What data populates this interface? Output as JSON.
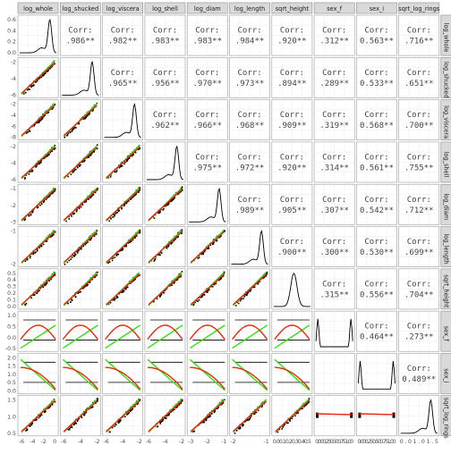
{
  "chart_data": {
    "type": "scatter-matrix",
    "title": "",
    "variables": [
      "log_whole",
      "log_shucked",
      "log_viscera",
      "log_shell",
      "log_diam",
      "log_length",
      "sqrt_height",
      "sex_f",
      "sex_i",
      "sqrt_log_rings"
    ],
    "strip_labels": [
      "log_whole",
      "log_shucked",
      "log_viscera",
      "log_shell",
      "log_diam",
      "log_length",
      "sqrt_height",
      "sex_f",
      "sex_i",
      "sqrt_log_rings"
    ],
    "correlations": [
      {
        "row": 0,
        "col": 1,
        "label": "Corr:",
        "value": ".986**"
      },
      {
        "row": 0,
        "col": 2,
        "label": "Corr:",
        "value": ".982**"
      },
      {
        "row": 0,
        "col": 3,
        "label": "Corr:",
        "value": ".983**"
      },
      {
        "row": 0,
        "col": 4,
        "label": "Corr:",
        "value": ".983**"
      },
      {
        "row": 0,
        "col": 5,
        "label": "Corr:",
        "value": ".984**"
      },
      {
        "row": 0,
        "col": 6,
        "label": "Corr:",
        "value": ".920**"
      },
      {
        "row": 0,
        "col": 7,
        "label": "Corr:",
        "value": ".312**"
      },
      {
        "row": 0,
        "col": 8,
        "label": "Corr:",
        "value": "0.563**"
      },
      {
        "row": 0,
        "col": 9,
        "label": "Corr:",
        "value": ".716**"
      },
      {
        "row": 1,
        "col": 2,
        "label": "Corr:",
        "value": ".965**"
      },
      {
        "row": 1,
        "col": 3,
        "label": "Corr:",
        "value": ".956**"
      },
      {
        "row": 1,
        "col": 4,
        "label": "Corr:",
        "value": ".970**"
      },
      {
        "row": 1,
        "col": 5,
        "label": "Corr:",
        "value": ".973**"
      },
      {
        "row": 1,
        "col": 6,
        "label": "Corr:",
        "value": ".894**"
      },
      {
        "row": 1,
        "col": 7,
        "label": "Corr:",
        "value": ".289**"
      },
      {
        "row": 1,
        "col": 8,
        "label": "Corr:",
        "value": "0.533**"
      },
      {
        "row": 1,
        "col": 9,
        "label": "Corr:",
        "value": ".651**"
      },
      {
        "row": 2,
        "col": 3,
        "label": "Corr:",
        "value": ".962**"
      },
      {
        "row": 2,
        "col": 4,
        "label": "Corr:",
        "value": ".966**"
      },
      {
        "row": 2,
        "col": 5,
        "label": "Corr:",
        "value": ".968**"
      },
      {
        "row": 2,
        "col": 6,
        "label": "Corr:",
        "value": ".909**"
      },
      {
        "row": 2,
        "col": 7,
        "label": "Corr:",
        "value": ".319**"
      },
      {
        "row": 2,
        "col": 8,
        "label": "Corr:",
        "value": "0.568**"
      },
      {
        "row": 2,
        "col": 9,
        "label": "Corr:",
        "value": ".700**"
      },
      {
        "row": 3,
        "col": 4,
        "label": "Corr:",
        "value": ".975**"
      },
      {
        "row": 3,
        "col": 5,
        "label": "Corr:",
        "value": ".972**"
      },
      {
        "row": 3,
        "col": 6,
        "label": "Corr:",
        "value": ".920**"
      },
      {
        "row": 3,
        "col": 7,
        "label": "Corr:",
        "value": ".314**"
      },
      {
        "row": 3,
        "col": 8,
        "label": "Corr:",
        "value": "0.561**"
      },
      {
        "row": 3,
        "col": 9,
        "label": "Corr:",
        "value": ".755**"
      },
      {
        "row": 4,
        "col": 5,
        "label": "Corr:",
        "value": ".989**"
      },
      {
        "row": 4,
        "col": 6,
        "label": "Corr:",
        "value": ".905**"
      },
      {
        "row": 4,
        "col": 7,
        "label": "Corr:",
        "value": ".307**"
      },
      {
        "row": 4,
        "col": 8,
        "label": "Corr:",
        "value": "0.542**"
      },
      {
        "row": 4,
        "col": 9,
        "label": "Corr:",
        "value": ".712**"
      },
      {
        "row": 5,
        "col": 6,
        "label": "Corr:",
        "value": ".900**"
      },
      {
        "row": 5,
        "col": 7,
        "label": "Corr:",
        "value": ".300**"
      },
      {
        "row": 5,
        "col": 8,
        "label": "Corr:",
        "value": "0.530**"
      },
      {
        "row": 5,
        "col": 9,
        "label": "Corr:",
        "value": ".699**"
      },
      {
        "row": 6,
        "col": 7,
        "label": "Corr:",
        "value": ".315**"
      },
      {
        "row": 6,
        "col": 8,
        "label": "Corr:",
        "value": "0.556**"
      },
      {
        "row": 6,
        "col": 9,
        "label": "Corr:",
        "value": ".704**"
      },
      {
        "row": 7,
        "col": 8,
        "label": "Corr:",
        "value": "0.464**"
      },
      {
        "row": 7,
        "col": 9,
        "label": "Corr:",
        "value": ".273**"
      },
      {
        "row": 8,
        "col": 9,
        "label": "Corr:",
        "value": "0.489**"
      }
    ],
    "y_ticks": [
      [
        "0.6",
        "0.4",
        "0.2",
        "0.0"
      ],
      [
        "-2",
        "-4",
        "-6"
      ],
      [
        "-2",
        "-4",
        "-6",
        "-8"
      ],
      [
        "-2",
        "-4",
        "-6"
      ],
      [
        "-1",
        "-2",
        "-3"
      ],
      [
        "-1",
        "-2"
      ],
      [
        "0.5",
        "0.4",
        "0.3",
        "0.2",
        "0.1",
        "0.0"
      ],
      [
        "1.0",
        "0.5",
        "0.0",
        "-0.5"
      ],
      [
        "2.0",
        "1.5",
        "1.0",
        "0.5",
        "0.0"
      ],
      [
        "1.5",
        "1.0",
        "0.5"
      ]
    ],
    "x_ticks": [
      [
        "-6",
        "-4",
        "-2",
        "0"
      ],
      [
        "-6",
        "-4",
        "-2"
      ],
      [
        "-6",
        "-4",
        "-2"
      ],
      [
        "-6",
        "-4",
        "-2"
      ],
      [
        "-3",
        "-2",
        "-1"
      ],
      [
        "-2",
        "-1"
      ],
      [
        "0.00.10.20.30.40.5"
      ],
      [
        "0.000.250.500.751.00"
      ],
      [
        "0.000.250.500.751.00"
      ],
      [
        "0.01.01.5"
      ]
    ],
    "fit_lines": {
      "points_color": "#000000",
      "red_line": "#e8280a",
      "green_line": "#33e010"
    },
    "grid": true,
    "panel_background": "#ffffff",
    "strip_background": "#d9d9d9"
  }
}
